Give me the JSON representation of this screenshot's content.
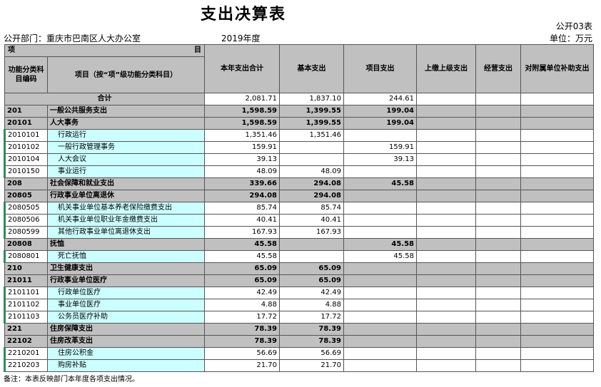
{
  "header": {
    "title": "支出决算表",
    "form_no": "公开03表",
    "department": "公开部门：重庆市巴南区人大办公室",
    "year": "2019年度",
    "unit": "单位：万元"
  },
  "table": {
    "corner_left": "项",
    "corner_right": "目",
    "columns": [
      "功能分类科目编码",
      "项目（按“项”级功能分类科目）",
      "本年支出合计",
      "基本支出",
      "项目支出",
      "上缴上级支出",
      "经营支出",
      "对附属单位补助支出"
    ],
    "total": {
      "label": "合计",
      "values": [
        "2,081.71",
        "1,837.10",
        "244.61",
        null,
        null,
        null
      ]
    },
    "rows": [
      {
        "code": "201",
        "name": "一般公共服务支出",
        "values": [
          "1,598.59",
          "1,399.55",
          "199.04",
          null,
          null,
          null
        ],
        "bold": true
      },
      {
        "code": "20101",
        "name": "人大事务",
        "values": [
          "1,598.59",
          "1,399.55",
          "199.04",
          null,
          null,
          null
        ],
        "bold": true
      },
      {
        "code": "2010101",
        "name": "行政运行",
        "values": [
          "1,351.46",
          "1,351.46",
          null,
          null,
          null,
          null
        ],
        "bold": false
      },
      {
        "code": "2010102",
        "name": "一般行政管理事务",
        "values": [
          "159.91",
          null,
          "159.91",
          null,
          null,
          null
        ],
        "bold": false
      },
      {
        "code": "2010104",
        "name": "人大会议",
        "values": [
          "39.13",
          null,
          "39.13",
          null,
          null,
          null
        ],
        "bold": false
      },
      {
        "code": "2010150",
        "name": "事业运行",
        "values": [
          "48.09",
          "48.09",
          null,
          null,
          null,
          null
        ],
        "bold": false
      },
      {
        "code": "208",
        "name": "社会保障和就业支出",
        "values": [
          "339.66",
          "294.08",
          "45.58",
          null,
          null,
          null
        ],
        "bold": true
      },
      {
        "code": "20805",
        "name": "行政事业单位离退休",
        "values": [
          "294.08",
          "294.08",
          null,
          null,
          null,
          null
        ],
        "bold": true
      },
      {
        "code": "2080505",
        "name": "机关事业单位基本养老保险缴费支出",
        "values": [
          "85.74",
          "85.74",
          null,
          null,
          null,
          null
        ],
        "bold": false
      },
      {
        "code": "2080506",
        "name": "机关事业单位职业年金缴费支出",
        "values": [
          "40.41",
          "40.41",
          null,
          null,
          null,
          null
        ],
        "bold": false
      },
      {
        "code": "2080599",
        "name": "其他行政事业单位离退休支出",
        "values": [
          "167.93",
          "167.93",
          null,
          null,
          null,
          null
        ],
        "bold": false
      },
      {
        "code": "20808",
        "name": "抚恤",
        "values": [
          "45.58",
          null,
          "45.58",
          null,
          null,
          null
        ],
        "bold": true
      },
      {
        "code": "2080801",
        "name": "死亡抚恤",
        "values": [
          "45.58",
          null,
          "45.58",
          null,
          null,
          null
        ],
        "bold": false
      },
      {
        "code": "210",
        "name": "卫生健康支出",
        "values": [
          "65.09",
          "65.09",
          null,
          null,
          null,
          null
        ],
        "bold": true
      },
      {
        "code": "21011",
        "name": "行政事业单位医疗",
        "values": [
          "65.09",
          "65.09",
          null,
          null,
          null,
          null
        ],
        "bold": true
      },
      {
        "code": "2101101",
        "name": "行政单位医疗",
        "values": [
          "42.49",
          "42.49",
          null,
          null,
          null,
          null
        ],
        "bold": false
      },
      {
        "code": "2101102",
        "name": "事业单位医疗",
        "values": [
          "4.88",
          "4.88",
          null,
          null,
          null,
          null
        ],
        "bold": false
      },
      {
        "code": "2101103",
        "name": "公务员医疗补助",
        "values": [
          "17.72",
          "17.72",
          null,
          null,
          null,
          null
        ],
        "bold": false
      },
      {
        "code": "221",
        "name": "住房保障支出",
        "values": [
          "78.39",
          "78.39",
          null,
          null,
          null,
          null
        ],
        "bold": true
      },
      {
        "code": "22102",
        "name": "住房改革支出",
        "values": [
          "78.39",
          "78.39",
          null,
          null,
          null,
          null
        ],
        "bold": true
      },
      {
        "code": "2210201",
        "name": "住房公积金",
        "values": [
          "56.69",
          "56.69",
          null,
          null,
          null,
          null
        ],
        "bold": false
      },
      {
        "code": "2210203",
        "name": "购房补贴",
        "values": [
          "21.70",
          "21.70",
          null,
          null,
          null,
          null
        ],
        "bold": false
      }
    ]
  },
  "note": "备注：本表反映部门本年度各项支出情况。"
}
